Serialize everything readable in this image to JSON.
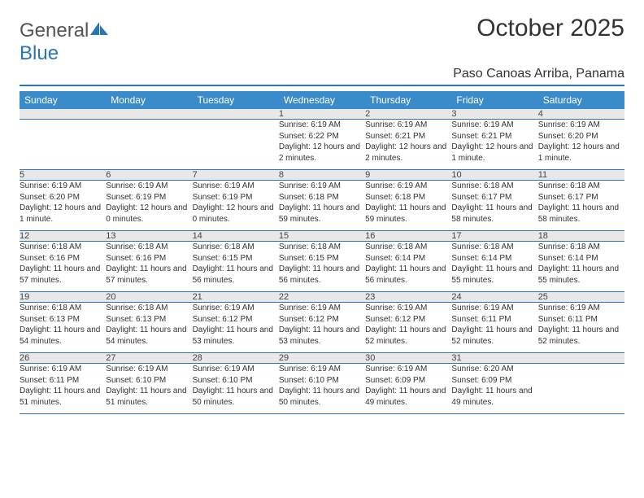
{
  "logo": {
    "text1": "General",
    "text2": "Blue"
  },
  "header": {
    "title": "October 2025",
    "location": "Paso Canoas Arriba, Panama"
  },
  "colors": {
    "header_bg": "#3a8bc9",
    "accent": "#2875b8",
    "daynum_bg": "#e8e8e8",
    "text": "#333333",
    "page_bg": "#ffffff"
  },
  "weekdays": [
    "Sunday",
    "Monday",
    "Tuesday",
    "Wednesday",
    "Thursday",
    "Friday",
    "Saturday"
  ],
  "weeks": [
    [
      null,
      null,
      null,
      {
        "n": "1",
        "sr": "6:19 AM",
        "ss": "6:22 PM",
        "dl": "12 hours and 2 minutes."
      },
      {
        "n": "2",
        "sr": "6:19 AM",
        "ss": "6:21 PM",
        "dl": "12 hours and 2 minutes."
      },
      {
        "n": "3",
        "sr": "6:19 AM",
        "ss": "6:21 PM",
        "dl": "12 hours and 1 minute."
      },
      {
        "n": "4",
        "sr": "6:19 AM",
        "ss": "6:20 PM",
        "dl": "12 hours and 1 minute."
      }
    ],
    [
      {
        "n": "5",
        "sr": "6:19 AM",
        "ss": "6:20 PM",
        "dl": "12 hours and 1 minute."
      },
      {
        "n": "6",
        "sr": "6:19 AM",
        "ss": "6:19 PM",
        "dl": "12 hours and 0 minutes."
      },
      {
        "n": "7",
        "sr": "6:19 AM",
        "ss": "6:19 PM",
        "dl": "12 hours and 0 minutes."
      },
      {
        "n": "8",
        "sr": "6:19 AM",
        "ss": "6:18 PM",
        "dl": "11 hours and 59 minutes."
      },
      {
        "n": "9",
        "sr": "6:19 AM",
        "ss": "6:18 PM",
        "dl": "11 hours and 59 minutes."
      },
      {
        "n": "10",
        "sr": "6:18 AM",
        "ss": "6:17 PM",
        "dl": "11 hours and 58 minutes."
      },
      {
        "n": "11",
        "sr": "6:18 AM",
        "ss": "6:17 PM",
        "dl": "11 hours and 58 minutes."
      }
    ],
    [
      {
        "n": "12",
        "sr": "6:18 AM",
        "ss": "6:16 PM",
        "dl": "11 hours and 57 minutes."
      },
      {
        "n": "13",
        "sr": "6:18 AM",
        "ss": "6:16 PM",
        "dl": "11 hours and 57 minutes."
      },
      {
        "n": "14",
        "sr": "6:18 AM",
        "ss": "6:15 PM",
        "dl": "11 hours and 56 minutes."
      },
      {
        "n": "15",
        "sr": "6:18 AM",
        "ss": "6:15 PM",
        "dl": "11 hours and 56 minutes."
      },
      {
        "n": "16",
        "sr": "6:18 AM",
        "ss": "6:14 PM",
        "dl": "11 hours and 56 minutes."
      },
      {
        "n": "17",
        "sr": "6:18 AM",
        "ss": "6:14 PM",
        "dl": "11 hours and 55 minutes."
      },
      {
        "n": "18",
        "sr": "6:18 AM",
        "ss": "6:14 PM",
        "dl": "11 hours and 55 minutes."
      }
    ],
    [
      {
        "n": "19",
        "sr": "6:18 AM",
        "ss": "6:13 PM",
        "dl": "11 hours and 54 minutes."
      },
      {
        "n": "20",
        "sr": "6:18 AM",
        "ss": "6:13 PM",
        "dl": "11 hours and 54 minutes."
      },
      {
        "n": "21",
        "sr": "6:19 AM",
        "ss": "6:12 PM",
        "dl": "11 hours and 53 minutes."
      },
      {
        "n": "22",
        "sr": "6:19 AM",
        "ss": "6:12 PM",
        "dl": "11 hours and 53 minutes."
      },
      {
        "n": "23",
        "sr": "6:19 AM",
        "ss": "6:12 PM",
        "dl": "11 hours and 52 minutes."
      },
      {
        "n": "24",
        "sr": "6:19 AM",
        "ss": "6:11 PM",
        "dl": "11 hours and 52 minutes."
      },
      {
        "n": "25",
        "sr": "6:19 AM",
        "ss": "6:11 PM",
        "dl": "11 hours and 52 minutes."
      }
    ],
    [
      {
        "n": "26",
        "sr": "6:19 AM",
        "ss": "6:11 PM",
        "dl": "11 hours and 51 minutes."
      },
      {
        "n": "27",
        "sr": "6:19 AM",
        "ss": "6:10 PM",
        "dl": "11 hours and 51 minutes."
      },
      {
        "n": "28",
        "sr": "6:19 AM",
        "ss": "6:10 PM",
        "dl": "11 hours and 50 minutes."
      },
      {
        "n": "29",
        "sr": "6:19 AM",
        "ss": "6:10 PM",
        "dl": "11 hours and 50 minutes."
      },
      {
        "n": "30",
        "sr": "6:19 AM",
        "ss": "6:09 PM",
        "dl": "11 hours and 49 minutes."
      },
      {
        "n": "31",
        "sr": "6:20 AM",
        "ss": "6:09 PM",
        "dl": "11 hours and 49 minutes."
      },
      null
    ]
  ],
  "labels": {
    "sunrise": "Sunrise:",
    "sunset": "Sunset:",
    "daylight": "Daylight:"
  }
}
